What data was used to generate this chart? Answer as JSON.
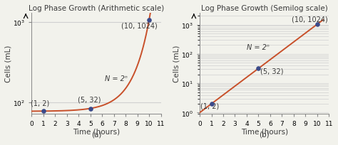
{
  "title_a": "Log Phase Growth (Arithmetic scale)",
  "title_b": "Log Phase Growth (Semilog scale)",
  "xlabel": "Time (hours)",
  "ylabel": "Cells (mL)",
  "subtitle_a": "(a)",
  "subtitle_b": "(b)",
  "highlight_points": [
    [
      1,
      2
    ],
    [
      5,
      32
    ],
    [
      10,
      1024
    ]
  ],
  "highlight_labels": [
    "(1, 2)",
    "(5, 32)",
    "(10, 1024)"
  ],
  "equation_label": "N = 2ⁿ",
  "line_color": "#c8502a",
  "point_color": "#3a4a8a",
  "bg_color": "#f2f2ec",
  "grid_color": "#d0d0d0",
  "text_color": "#3a3a3a",
  "xlim": [
    0,
    11
  ],
  "xticks": [
    0,
    1,
    2,
    3,
    4,
    5,
    6,
    7,
    8,
    9,
    10,
    11
  ],
  "title_fontsize": 7.5,
  "label_fontsize": 7.5,
  "tick_fontsize": 6.5,
  "annot_fontsize": 7.0
}
